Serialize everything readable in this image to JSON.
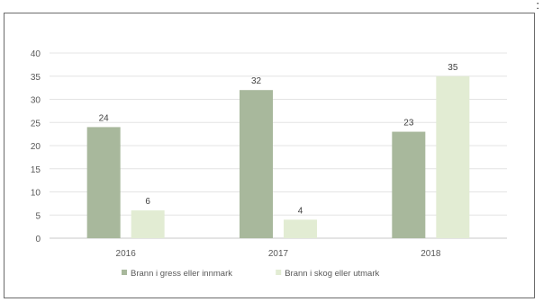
{
  "corner_glyph": ":",
  "chart_data": {
    "type": "bar",
    "categories": [
      "2016",
      "2017",
      "2018"
    ],
    "series": [
      {
        "name": "Brann i gress eller innmark",
        "values": [
          24,
          32,
          23
        ],
        "color": "#a8b89c"
      },
      {
        "name": "Brann i skog eller utmark",
        "values": [
          6,
          4,
          35
        ],
        "color": "#e2ecd3"
      }
    ],
    "ylim": [
      0,
      40
    ],
    "yticks": [
      "0",
      "5",
      "10",
      "15",
      "20",
      "25",
      "30",
      "35",
      "40"
    ],
    "grid": true,
    "legend": "bottom",
    "title": "",
    "xlabel": "",
    "ylabel": ""
  }
}
